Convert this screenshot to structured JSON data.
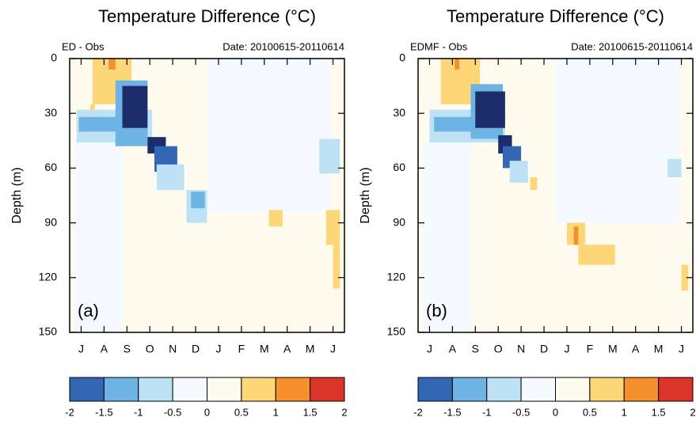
{
  "chart_data": [
    {
      "type": "heatmap",
      "title": "Temperature Difference (°C)",
      "subtitle_left": "ED - Obs",
      "subtitle_right": "Date: 20100615-20110614",
      "panel_label": "(a)",
      "ylabel": "Depth (m)",
      "categories": [
        "J",
        "A",
        "S",
        "O",
        "N",
        "D",
        "J",
        "F",
        "M",
        "A",
        "M",
        "J"
      ],
      "xlim": [
        0,
        12
      ],
      "ylim": [
        0,
        150
      ],
      "y_reversed": true,
      "yticks": [
        0,
        30,
        60,
        90,
        120,
        150
      ],
      "levels": [
        -2,
        -1.5,
        -1,
        -0.5,
        0,
        0.5,
        1,
        1.5,
        2
      ],
      "colors": [
        "#3366b3",
        "#6db3e4",
        "#bde1f5",
        "#f4faff",
        "#fffbee",
        "#fdd677",
        "#f6902c",
        "#db3529"
      ],
      "under_color": "#1b2d6b",
      "cells": [
        {
          "x": [
            0,
            12
          ],
          "y": [
            0,
            150
          ],
          "value": 0.2
        },
        {
          "x": [
            6,
            11.4
          ],
          "y": [
            0,
            84
          ],
          "value": -0.2
        },
        {
          "x": [
            0.2,
            2.3
          ],
          "y": [
            45,
            150
          ],
          "value": -0.2
        },
        {
          "x": [
            1,
            2.7
          ],
          "y": [
            0,
            25
          ],
          "value": 0.7
        },
        {
          "x": [
            0.9,
            1.1
          ],
          "y": [
            25,
            30
          ],
          "value": 0.7
        },
        {
          "x": [
            1.7,
            2
          ],
          "y": [
            0,
            6
          ],
          "value": 1.2
        },
        {
          "x": [
            0.3,
            3.6
          ],
          "y": [
            28,
            46
          ],
          "value": -0.7
        },
        {
          "x": [
            0.4,
            3.4
          ],
          "y": [
            32,
            40
          ],
          "value": -1.2
        },
        {
          "x": [
            2,
            3.4
          ],
          "y": [
            12,
            48
          ],
          "value": -1.2
        },
        {
          "x": [
            2.3,
            3.4
          ],
          "y": [
            15,
            38
          ],
          "value": -2.2
        },
        {
          "x": [
            3.4,
            4.2
          ],
          "y": [
            43,
            52
          ],
          "value": -2.2
        },
        {
          "x": [
            3.7,
            4.7
          ],
          "y": [
            48,
            62
          ],
          "value": -1.7
        },
        {
          "x": [
            3.8,
            5
          ],
          "y": [
            58,
            72
          ],
          "value": -0.7
        },
        {
          "x": [
            5.1,
            6
          ],
          "y": [
            72,
            90
          ],
          "value": -0.7
        },
        {
          "x": [
            5.3,
            5.9
          ],
          "y": [
            73,
            82
          ],
          "value": -1.2
        },
        {
          "x": [
            8.7,
            9.3
          ],
          "y": [
            83,
            92
          ],
          "value": 0.7
        },
        {
          "x": [
            11.2,
            11.8
          ],
          "y": [
            83,
            102
          ],
          "value": 0.7
        },
        {
          "x": [
            11.5,
            11.8
          ],
          "y": [
            102,
            126
          ],
          "value": 0.7
        },
        {
          "x": [
            10.9,
            11.8
          ],
          "y": [
            44,
            63
          ],
          "value": -0.7
        }
      ]
    },
    {
      "type": "heatmap",
      "title": "Temperature Difference (°C)",
      "subtitle_left": "EDMF - Obs",
      "subtitle_right": "Date: 20100615-20110614",
      "panel_label": "(b)",
      "ylabel": "Depth (m)",
      "categories": [
        "J",
        "A",
        "S",
        "O",
        "N",
        "D",
        "J",
        "F",
        "M",
        "A",
        "M",
        "J"
      ],
      "xlim": [
        0,
        12
      ],
      "ylim": [
        0,
        150
      ],
      "y_reversed": true,
      "yticks": [
        0,
        30,
        60,
        90,
        120,
        150
      ],
      "levels": [
        -2,
        -1.5,
        -1,
        -0.5,
        0,
        0.5,
        1,
        1.5,
        2
      ],
      "colors": [
        "#3366b3",
        "#6db3e4",
        "#bde1f5",
        "#f4faff",
        "#fffbee",
        "#fdd677",
        "#f6902c",
        "#db3529"
      ],
      "under_color": "#1b2d6b",
      "cells": [
        {
          "x": [
            0,
            12
          ],
          "y": [
            0,
            150
          ],
          "value": 0.2
        },
        {
          "x": [
            6,
            11.4
          ],
          "y": [
            0,
            90
          ],
          "value": -0.2
        },
        {
          "x": [
            0.2,
            2.3
          ],
          "y": [
            45,
            150
          ],
          "value": -0.2
        },
        {
          "x": [
            1,
            2.7
          ],
          "y": [
            0,
            25
          ],
          "value": 0.7
        },
        {
          "x": [
            1.6,
            1.8
          ],
          "y": [
            0,
            6
          ],
          "value": 1.2
        },
        {
          "x": [
            0.5,
            3.8
          ],
          "y": [
            28,
            46
          ],
          "value": -0.7
        },
        {
          "x": [
            0.7,
            3.5
          ],
          "y": [
            32,
            40
          ],
          "value": -1.2
        },
        {
          "x": [
            2.3,
            3.7
          ],
          "y": [
            14,
            44
          ],
          "value": -1.2
        },
        {
          "x": [
            2.5,
            3.8
          ],
          "y": [
            18,
            38
          ],
          "value": -2.2
        },
        {
          "x": [
            3.5,
            4.1
          ],
          "y": [
            42,
            52
          ],
          "value": -2.2
        },
        {
          "x": [
            3.7,
            4.5
          ],
          "y": [
            48,
            60
          ],
          "value": -1.7
        },
        {
          "x": [
            4,
            4.8
          ],
          "y": [
            56,
            68
          ],
          "value": -0.7
        },
        {
          "x": [
            4.9,
            5.2
          ],
          "y": [
            65,
            72
          ],
          "value": 0.7
        },
        {
          "x": [
            6.5,
            7.3
          ],
          "y": [
            90,
            102
          ],
          "value": 0.7
        },
        {
          "x": [
            6.8,
            7
          ],
          "y": [
            92,
            102
          ],
          "value": 1.2
        },
        {
          "x": [
            7,
            8.6
          ],
          "y": [
            102,
            113
          ],
          "value": 0.7
        },
        {
          "x": [
            11.5,
            11.8
          ],
          "y": [
            113,
            127
          ],
          "value": 0.7
        },
        {
          "x": [
            10.9,
            11.5
          ],
          "y": [
            55,
            65
          ],
          "value": -0.7
        }
      ]
    }
  ]
}
